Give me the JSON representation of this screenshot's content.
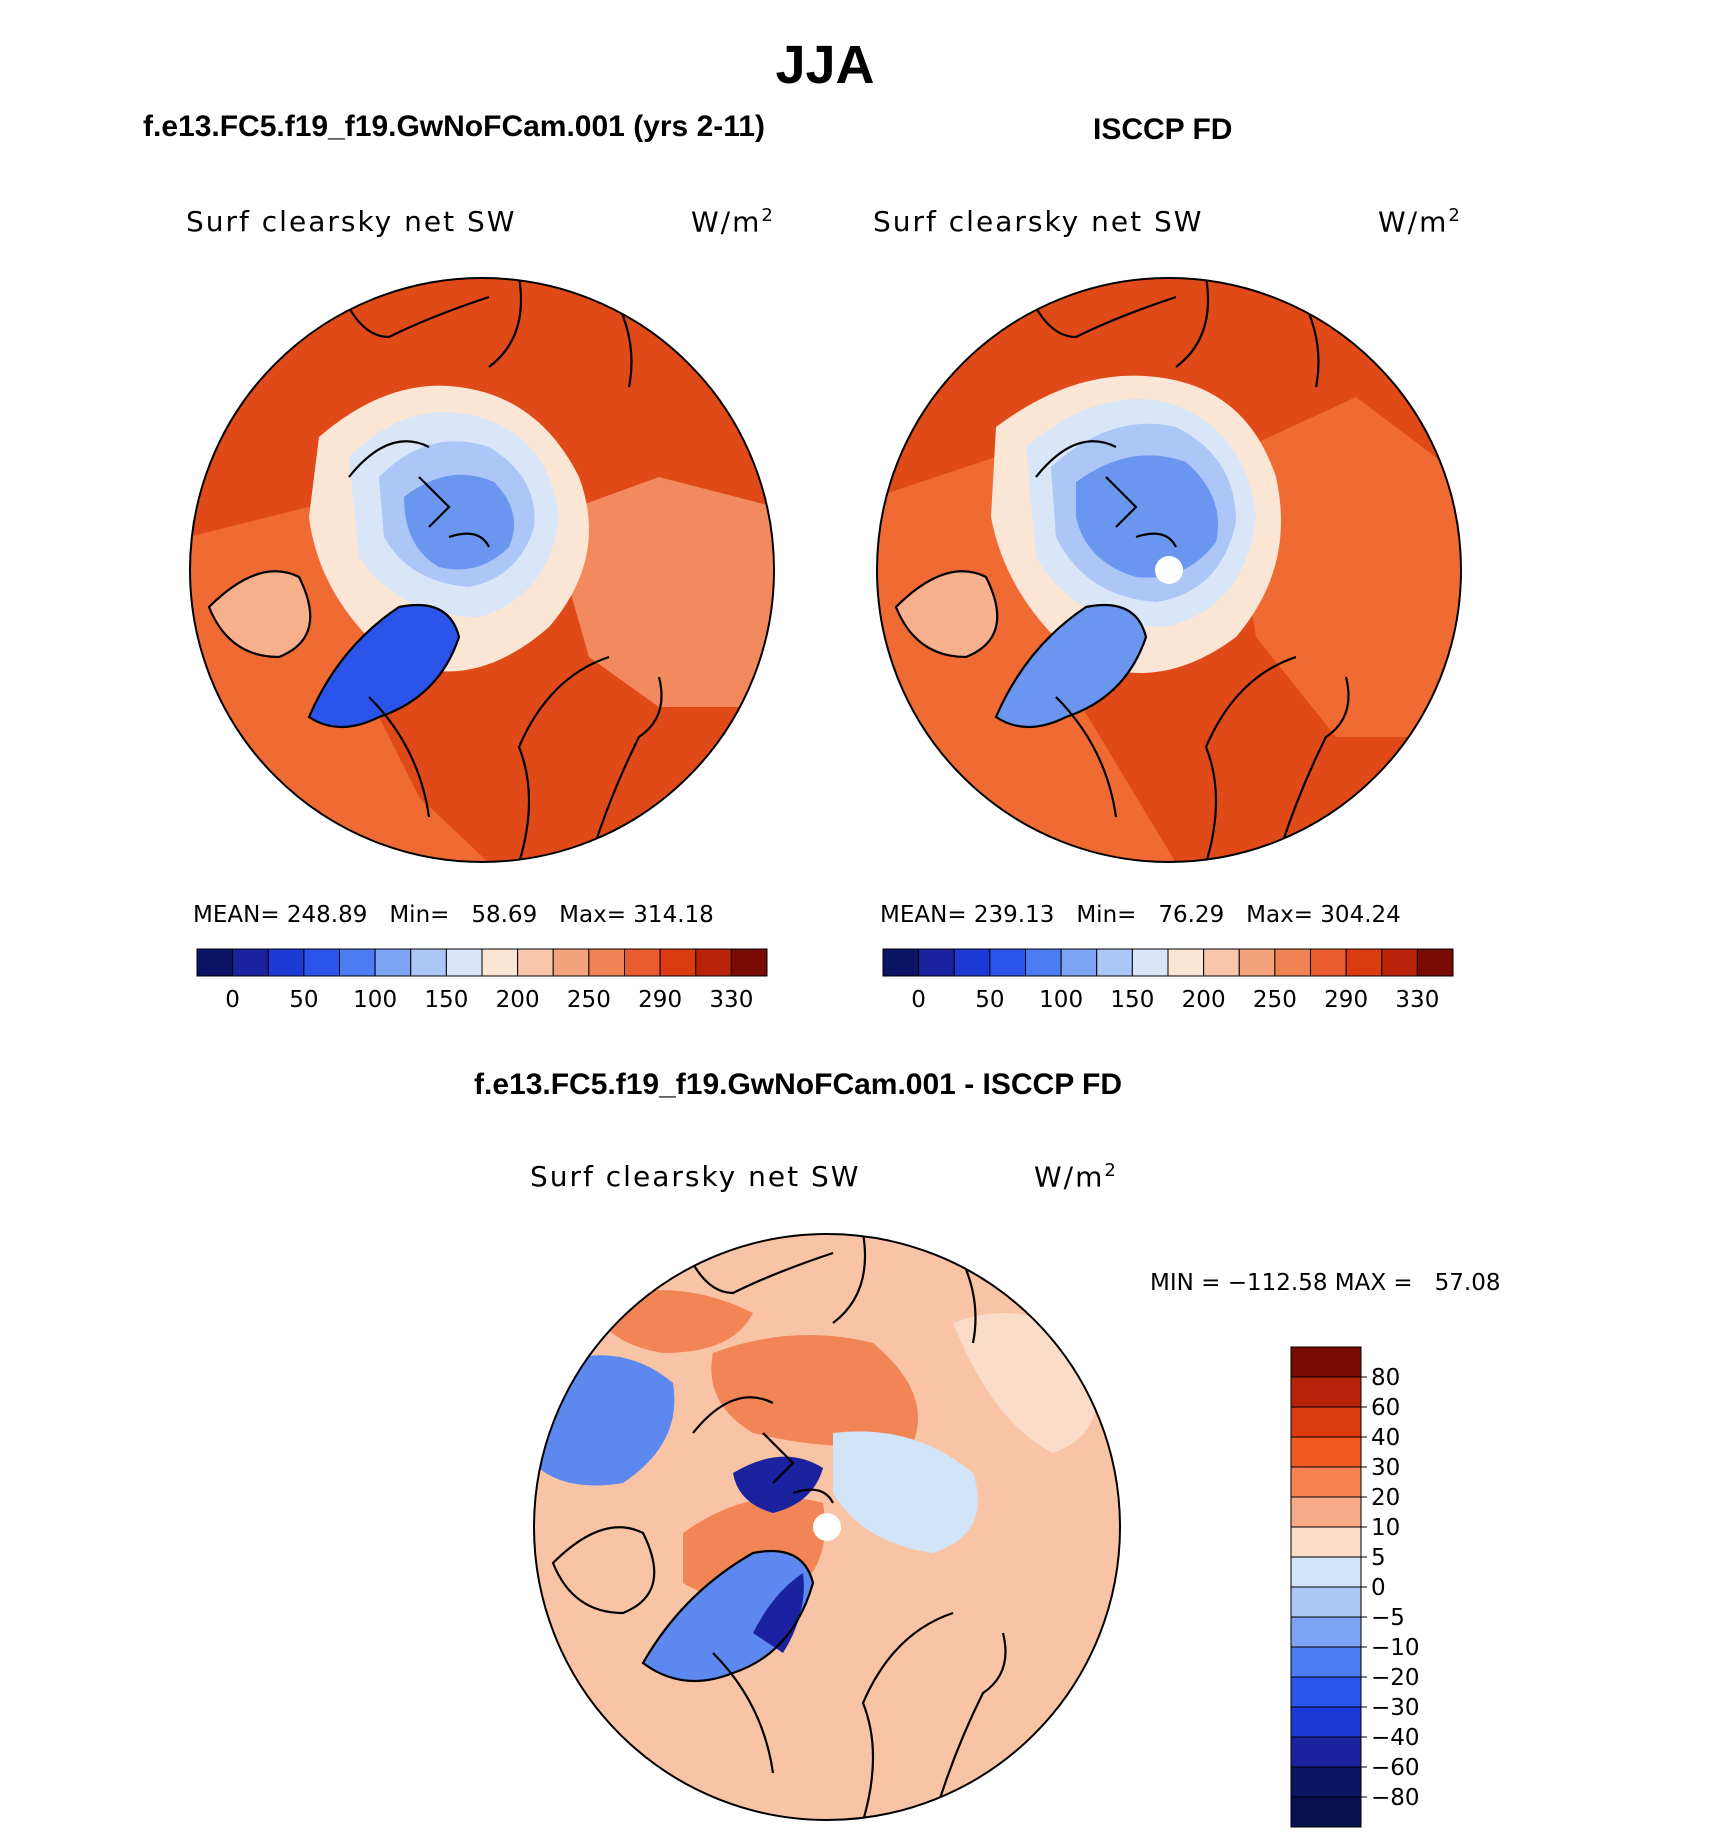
{
  "title": "JJA",
  "panels": [
    {
      "title": "f.e13.FC5.f19_f19.GwNoFCam.001 (yrs 2-11)",
      "left_label": "Surf clearsky net SW",
      "units": "W/m",
      "units_sup": "2",
      "stats": {
        "mean_label": "MEAN=",
        "mean": "248.89",
        "min_label": "Min=",
        "min": "58.69",
        "max_label": "Max=",
        "max": "314.18"
      }
    },
    {
      "title": "ISCCP FD",
      "left_label": "Surf clearsky net SW",
      "units": "W/m",
      "units_sup": "2",
      "stats": {
        "mean_label": "MEAN=",
        "mean": "239.13",
        "min_label": "Min=",
        "min": "76.29",
        "max_label": "Max=",
        "max": "304.24"
      }
    },
    {
      "title": "f.e13.FC5.f19_f19.GwNoFCam.001 - ISCCP FD",
      "left_label": "Surf clearsky net SW",
      "units": "W/m",
      "units_sup": "2",
      "stats_text": "MIN = −112.58 MAX =   57.08"
    }
  ],
  "colorbar_abs": {
    "colors": [
      "#0c1466",
      "#1a22a0",
      "#1e3ad6",
      "#2b55ea",
      "#4b7cf2",
      "#7da3f4",
      "#abc6f7",
      "#d8e6f8",
      "#fbe5d4",
      "#f8c6aa",
      "#f5a37d",
      "#f08254",
      "#ea5c30",
      "#dc3b10",
      "#b82208",
      "#7a0a04"
    ],
    "labels": [
      "0",
      "50",
      "100",
      "150",
      "200",
      "250",
      "290",
      "330"
    ]
  },
  "colorbar_diff": {
    "colors": [
      "#7a0a04",
      "#b82208",
      "#dc3b10",
      "#f05a20",
      "#f58450",
      "#f8aa88",
      "#fbdcc8",
      "#d2e4f8",
      "#abc6f7",
      "#7da3f4",
      "#4b7cf2",
      "#2b55ea",
      "#1e3ad6",
      "#1a22a0",
      "#0c1466",
      "#08104e"
    ],
    "labels": [
      "80",
      "60",
      "40",
      "30",
      "20",
      "10",
      "5",
      "0",
      "−5",
      "−10",
      "−20",
      "−30",
      "−40",
      "−60",
      "−80"
    ]
  },
  "map_colors": {
    "ocean_high": "#e04a18",
    "ocean_mid": "#f06a34",
    "land_mid": "#f38a5e",
    "land_light": "#f7b08c",
    "pale": "#fbe5d4",
    "ice_light": "#d8e6f8",
    "ice_mid": "#abc6f7",
    "ice_blue": "#6a96f0",
    "ice_deep": "#2b55ea",
    "diff_base": "#f9c4a6",
    "diff_warm": "#f28556",
    "diff_light": "#fbdcc8",
    "diff_cool": "#d2e4f8",
    "diff_blue": "#5d88f0",
    "diff_deep": "#1a22a0"
  }
}
